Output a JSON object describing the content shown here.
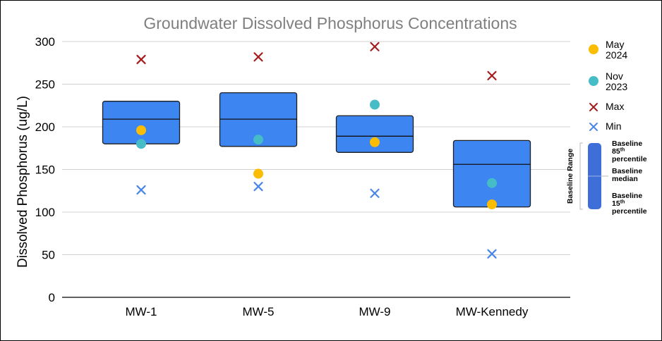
{
  "colors": {
    "box_fill": "#3d85f0",
    "box_stroke": "#1f1f1f",
    "may_2024": "#fbbc04",
    "nov_2023": "#46bdc6",
    "max": "#a51c1c",
    "min": "#4a86e8",
    "legend_box": "#3e6fd8",
    "grid": "#d0d0d0"
  },
  "chart_data": {
    "type": "box-range-scatter",
    "title": "Groundwater Dissolved Phosphorus Concentrations",
    "xlabel": "",
    "ylabel": "Dissolved Phosphorus (ug/L)",
    "ylim": [
      0,
      300
    ],
    "yticks": [
      0,
      50,
      100,
      150,
      200,
      250,
      300
    ],
    "grid": true,
    "legend_position": "right",
    "categories": [
      "MW-1",
      "MW-5",
      "MW-9",
      "MW-Kennedy"
    ],
    "baseline": [
      {
        "p15": 180,
        "median": 209,
        "p85": 230
      },
      {
        "p15": 177,
        "median": 209,
        "p85": 240
      },
      {
        "p15": 170,
        "median": 189,
        "p85": 213
      },
      {
        "p15": 106,
        "median": 156,
        "p85": 184
      }
    ],
    "series": [
      {
        "name": "May 2024",
        "marker": "circle",
        "color_key": "may_2024",
        "values": [
          196,
          145,
          182,
          109
        ]
      },
      {
        "name": "Nov 2023",
        "marker": "circle",
        "color_key": "nov_2023",
        "values": [
          180,
          185,
          226,
          134
        ]
      },
      {
        "name": "Max",
        "marker": "x",
        "color_key": "max",
        "values": [
          279,
          282,
          294,
          260
        ]
      },
      {
        "name": "Min",
        "marker": "x",
        "color_key": "min",
        "values": [
          126,
          130,
          122,
          51
        ]
      }
    ],
    "legend": [
      {
        "lines": [
          "May",
          "2024"
        ],
        "marker": "circle",
        "color_key": "may_2024"
      },
      {
        "lines": [
          "Nov",
          "2023"
        ],
        "marker": "circle",
        "color_key": "nov_2023"
      },
      {
        "lines": [
          "Max"
        ],
        "marker": "x",
        "color_key": "max"
      },
      {
        "lines": [
          "Min"
        ],
        "marker": "x",
        "color_key": "min"
      }
    ],
    "baseline_legend": {
      "title": "Baseline Range",
      "p85_label": [
        "Baseline",
        "85th",
        "percentile"
      ],
      "median_label": [
        "Baseline",
        "median"
      ],
      "p15_label": [
        "Baseline",
        "15th",
        "percentile"
      ]
    }
  }
}
